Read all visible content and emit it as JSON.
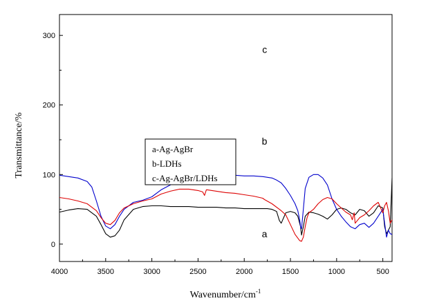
{
  "chart_data": {
    "type": "line",
    "xlabel": "Wavenumber/cm",
    "xlabel_sup": "-1",
    "ylabel": "Transmittance/%",
    "xlim": [
      4000,
      400
    ],
    "ylim": [
      -25,
      330
    ],
    "x_ticks": [
      4000,
      3500,
      3000,
      2500,
      2000,
      1500,
      1000,
      500
    ],
    "y_ticks": [
      0,
      100,
      200,
      300
    ],
    "grid": false,
    "legend": {
      "placement": "center-left",
      "entries": [
        "a-Ag-AgBr",
        "b-LDHs",
        "c-Ag-AgBr/LDHs"
      ]
    },
    "annotations": [
      {
        "text": "a",
        "x": 1810,
        "y": 10
      },
      {
        "text": "b",
        "x": 1810,
        "y": 143
      },
      {
        "text": "c",
        "x": 1805,
        "y": 275
      }
    ],
    "series": [
      {
        "color": "#000000",
        "x": [
          4000,
          3900,
          3800,
          3700,
          3600,
          3550,
          3500,
          3450,
          3400,
          3350,
          3300,
          3200,
          3100,
          3000,
          2900,
          2800,
          2700,
          2600,
          2500,
          2400,
          2300,
          2200,
          2100,
          2000,
          1900,
          1800,
          1750,
          1700,
          1650,
          1620,
          1600,
          1550,
          1500,
          1450,
          1420,
          1390,
          1380,
          1360,
          1340,
          1300,
          1250,
          1200,
          1150,
          1100,
          1050,
          1000,
          950,
          900,
          850,
          800,
          750,
          700,
          650,
          600,
          550,
          500,
          480,
          460,
          440,
          420,
          400
        ],
        "y": [
          46,
          49,
          51,
          50,
          40,
          28,
          15,
          10,
          12,
          20,
          35,
          50,
          54,
          55,
          55,
          54,
          54,
          54,
          53,
          53,
          53,
          52,
          52,
          51,
          51,
          51,
          51,
          50,
          47,
          34,
          30,
          45,
          47,
          45,
          40,
          25,
          13,
          25,
          40,
          46,
          45,
          43,
          40,
          36,
          42,
          50,
          52,
          50,
          45,
          42,
          50,
          48,
          40,
          45,
          55,
          52,
          25,
          15,
          20,
          25,
          95
        ]
      },
      {
        "color": "#0000cc",
        "x": [
          4000,
          3900,
          3800,
          3700,
          3650,
          3600,
          3550,
          3500,
          3450,
          3400,
          3350,
          3300,
          3200,
          3100,
          3000,
          2900,
          2800,
          2700,
          2600,
          2500,
          2400,
          2300,
          2200,
          2100,
          2000,
          1900,
          1800,
          1700,
          1650,
          1600,
          1550,
          1500,
          1450,
          1420,
          1400,
          1390,
          1380,
          1360,
          1340,
          1300,
          1250,
          1200,
          1150,
          1100,
          1050,
          1000,
          950,
          900,
          850,
          800,
          750,
          700,
          650,
          600,
          550,
          500,
          480,
          460,
          440,
          420,
          400
        ],
        "y": [
          99,
          97,
          95,
          90,
          82,
          62,
          40,
          26,
          22,
          28,
          40,
          50,
          60,
          63,
          68,
          78,
          85,
          92,
          96,
          97,
          98,
          99,
          99,
          99,
          98,
          98,
          97,
          95,
          92,
          88,
          80,
          70,
          58,
          48,
          35,
          25,
          22,
          50,
          80,
          96,
          100,
          100,
          95,
          85,
          65,
          50,
          40,
          32,
          25,
          22,
          28,
          30,
          24,
          30,
          40,
          50,
          30,
          10,
          20,
          15,
          14
        ]
      },
      {
        "color": "#dd0000",
        "x": [
          4000,
          3900,
          3800,
          3700,
          3600,
          3550,
          3500,
          3450,
          3400,
          3350,
          3300,
          3200,
          3100,
          3000,
          2900,
          2800,
          2700,
          2600,
          2500,
          2450,
          2430,
          2410,
          2400,
          2300,
          2200,
          2100,
          2000,
          1900,
          1800,
          1780,
          1700,
          1600,
          1550,
          1500,
          1450,
          1400,
          1380,
          1360,
          1340,
          1320,
          1300,
          1250,
          1200,
          1150,
          1100,
          1050,
          1000,
          950,
          900,
          850,
          830,
          810,
          800,
          750,
          700,
          650,
          600,
          550,
          500,
          480,
          460,
          440,
          420,
          400
        ],
        "y": [
          67,
          65,
          62,
          58,
          48,
          38,
          30,
          28,
          34,
          45,
          52,
          58,
          62,
          65,
          72,
          76,
          79,
          79,
          77,
          75,
          70,
          78,
          78,
          76,
          74,
          73,
          71,
          69,
          66,
          64,
          58,
          48,
          42,
          28,
          14,
          5,
          4,
          10,
          25,
          38,
          45,
          50,
          58,
          64,
          67,
          65,
          58,
          52,
          46,
          42,
          35,
          45,
          30,
          38,
          42,
          48,
          55,
          60,
          45,
          55,
          60,
          48,
          30,
          35
        ]
      }
    ]
  }
}
